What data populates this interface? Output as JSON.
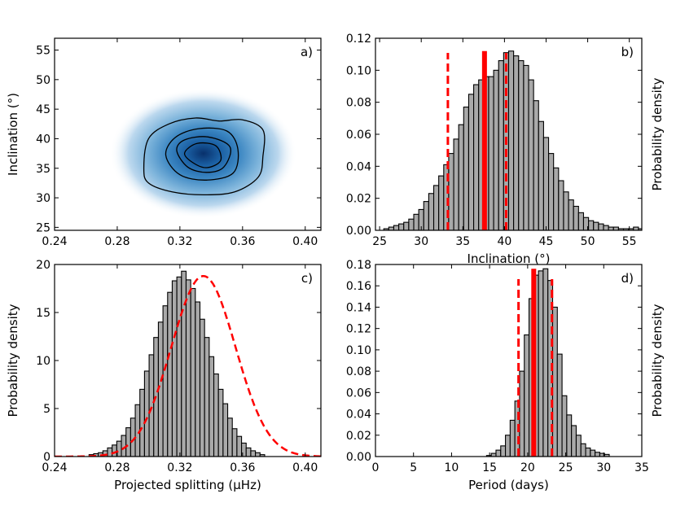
{
  "chart_data": [
    {
      "id": "a",
      "type": "contour",
      "panel_label": "a)",
      "xlabel": "",
      "ylabel": "Inclination (°)",
      "xlim": [
        0.24,
        0.41
      ],
      "ylim": [
        24.5,
        57
      ],
      "xticks": [
        0.24,
        0.28,
        0.32,
        0.36,
        0.4
      ],
      "xtick_labels": [
        "0.24",
        "0.28",
        "0.32",
        "0.36",
        "0.40"
      ],
      "yticks": [
        25,
        30,
        35,
        40,
        45,
        50,
        55
      ],
      "ytick_labels": [
        "25",
        "30",
        "35",
        "40",
        "45",
        "50",
        "55"
      ],
      "peak": {
        "x": 0.335,
        "y": 37.5
      },
      "contour_levels": [
        {
          "level": 1,
          "points": [
            [
              0.297,
              35
            ],
            [
              0.3,
              40
            ],
            [
              0.313,
              42.5
            ],
            [
              0.33,
              43.5
            ],
            [
              0.345,
              43
            ],
            [
              0.36,
              43.2
            ],
            [
              0.373,
              41.5
            ],
            [
              0.373,
              37
            ],
            [
              0.37,
              33.5
            ],
            [
              0.355,
              31
            ],
            [
              0.335,
              30.5
            ],
            [
              0.315,
              31
            ],
            [
              0.3,
              32.5
            ]
          ]
        },
        {
          "level": 2,
          "points": [
            [
              0.311,
              37.2
            ],
            [
              0.317,
              40.2
            ],
            [
              0.332,
              41.7
            ],
            [
              0.35,
              41.3
            ],
            [
              0.357,
              38.2
            ],
            [
              0.354,
              34.2
            ],
            [
              0.337,
              33.0
            ],
            [
              0.32,
              33.9
            ]
          ]
        },
        {
          "level": 3,
          "points": [
            [
              0.318,
              38
            ],
            [
              0.323,
              39.8
            ],
            [
              0.338,
              40.3
            ],
            [
              0.352,
              38.6
            ],
            [
              0.348,
              35.2
            ],
            [
              0.337,
              34.3
            ],
            [
              0.325,
              35.2
            ]
          ]
        },
        {
          "level": 4,
          "points": [
            [
              0.323,
              37.6
            ],
            [
              0.331,
              39.2
            ],
            [
              0.343,
              38.8
            ],
            [
              0.346,
              36.3
            ],
            [
              0.337,
              35.1
            ],
            [
              0.328,
              36.0
            ]
          ]
        }
      ]
    },
    {
      "id": "b",
      "type": "bar",
      "panel_label": "b)",
      "xlabel": "Inclination (°)",
      "ylabel": "Probability density",
      "xlim": [
        24.5,
        56.5
      ],
      "ylim": [
        0,
        0.12
      ],
      "xticks": [
        25,
        30,
        35,
        40,
        45,
        50,
        55
      ],
      "xtick_labels": [
        "25",
        "30",
        "35",
        "40",
        "45",
        "50",
        "55"
      ],
      "yticks": [
        0,
        0.02,
        0.04,
        0.06,
        0.08,
        0.1,
        0.12
      ],
      "ytick_labels": [
        "0.00",
        "0.02",
        "0.04",
        "0.06",
        "0.08",
        "0.10",
        "0.12"
      ],
      "bin_start": 25.5,
      "bin_width": 0.6,
      "values": [
        0.001,
        0.002,
        0.003,
        0.004,
        0.005,
        0.007,
        0.01,
        0.013,
        0.018,
        0.023,
        0.028,
        0.034,
        0.041,
        0.048,
        0.057,
        0.066,
        0.077,
        0.085,
        0.091,
        0.094,
        0.096,
        0.096,
        0.1,
        0.106,
        0.111,
        0.112,
        0.109,
        0.106,
        0.103,
        0.094,
        0.081,
        0.068,
        0.058,
        0.048,
        0.039,
        0.031,
        0.024,
        0.019,
        0.015,
        0.011,
        0.008,
        0.006,
        0.005,
        0.004,
        0.003,
        0.002,
        0.002,
        0.001,
        0.001,
        0.001,
        0.002,
        0.001
      ],
      "median_line": 37.6,
      "interval_lines": [
        33.2,
        40.2
      ]
    },
    {
      "id": "c",
      "type": "bar",
      "panel_label": "c)",
      "xlabel": "Projected splitting (μHz)",
      "ylabel": "Probability density",
      "xlim": [
        0.24,
        0.41
      ],
      "ylim": [
        0,
        20
      ],
      "xticks": [
        0.24,
        0.28,
        0.32,
        0.36,
        0.4
      ],
      "xtick_labels": [
        "0.24",
        "0.28",
        "0.32",
        "0.36",
        "0.40"
      ],
      "yticks": [
        0,
        5,
        10,
        15,
        20
      ],
      "ytick_labels": [
        "0",
        "5",
        "10",
        "15",
        "20"
      ],
      "bin_start": 0.262,
      "bin_width": 0.00295,
      "values": [
        0.2,
        0.3,
        0.4,
        0.6,
        0.9,
        1.2,
        1.6,
        2.2,
        3.0,
        4.0,
        5.4,
        7.0,
        8.9,
        10.6,
        12.4,
        14.0,
        15.7,
        17.1,
        18.3,
        18.7,
        19.3,
        18.4,
        17.5,
        16.1,
        14.3,
        12.4,
        10.4,
        8.6,
        7.0,
        5.5,
        4.0,
        2.9,
        2.1,
        1.4,
        0.9,
        0.6,
        0.4,
        0.2
      ],
      "fit_curve": {
        "mean": 0.335,
        "sigma": 0.0205,
        "peak": 18.8
      }
    },
    {
      "id": "d",
      "type": "bar",
      "panel_label": "d)",
      "xlabel": "Period (days)",
      "ylabel": "Probability density",
      "xlim": [
        0,
        35
      ],
      "ylim": [
        0,
        0.18
      ],
      "xticks": [
        0,
        5,
        10,
        15,
        20,
        25,
        30,
        35
      ],
      "xtick_labels": [
        "0",
        "5",
        "10",
        "15",
        "20",
        "25",
        "30",
        "35"
      ],
      "yticks": [
        0,
        0.02,
        0.04,
        0.06,
        0.08,
        0.1,
        0.12,
        0.14,
        0.16,
        0.18
      ],
      "ytick_labels": [
        "0.00",
        "0.02",
        "0.04",
        "0.06",
        "0.08",
        "0.10",
        "0.12",
        "0.14",
        "0.16",
        "0.18"
      ],
      "bin_start": 14.6,
      "bin_width": 0.62,
      "values": [
        0.001,
        0.003,
        0.006,
        0.01,
        0.02,
        0.034,
        0.052,
        0.08,
        0.114,
        0.148,
        0.17,
        0.174,
        0.176,
        0.165,
        0.14,
        0.096,
        0.057,
        0.039,
        0.029,
        0.02,
        0.012,
        0.008,
        0.006,
        0.004,
        0.003,
        0.002
      ],
      "median_line": 20.8,
      "interval_lines": [
        18.8,
        23.2
      ]
    }
  ]
}
